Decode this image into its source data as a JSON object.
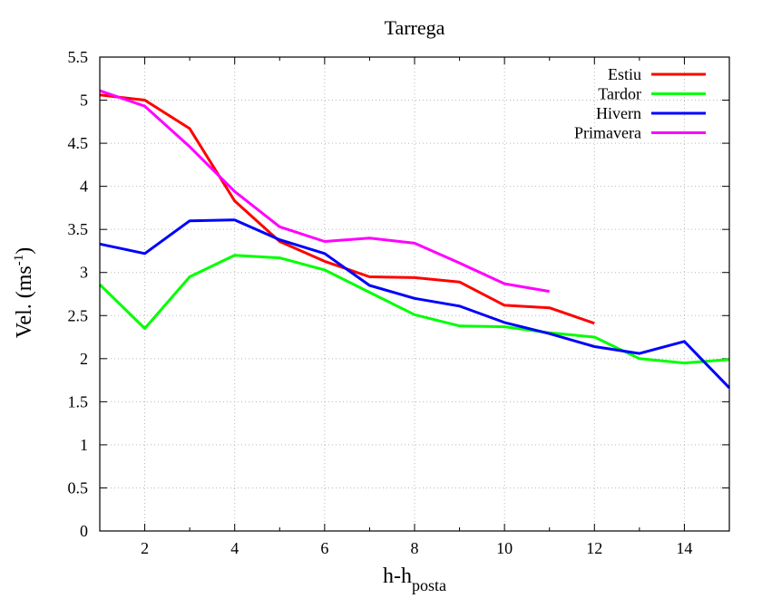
{
  "chart_data": {
    "type": "line",
    "title": "Tarrega",
    "xlabel": {
      "main": "h-h",
      "sub": "posta"
    },
    "ylabel": {
      "main": "Vel. (ms",
      "sup": "-1",
      "close": ")"
    },
    "xlim": [
      1,
      15
    ],
    "ylim": [
      0,
      5.5
    ],
    "xticks": [
      2,
      4,
      6,
      8,
      10,
      12,
      14
    ],
    "xtick_labels": [
      "2",
      "4",
      "6",
      "8",
      "10",
      "12",
      "14"
    ],
    "yticks": [
      0,
      0.5,
      1,
      1.5,
      2,
      2.5,
      3,
      3.5,
      4,
      4.5,
      5,
      5.5
    ],
    "ytick_labels": [
      "0",
      "0.5",
      "1",
      "1.5",
      "2",
      "2.5",
      "3",
      "3.5",
      "4",
      "4.5",
      "5",
      "5.5"
    ],
    "grid": true,
    "legend_position": "top-right",
    "series": [
      {
        "name": "Estiu",
        "color": "#ff0000",
        "x": [
          1,
          2,
          3,
          4,
          5,
          6,
          7,
          8,
          9,
          10,
          11,
          12
        ],
        "y": [
          5.06,
          5.0,
          4.67,
          3.83,
          3.36,
          3.13,
          2.95,
          2.94,
          2.89,
          2.62,
          2.59,
          2.41
        ]
      },
      {
        "name": "Tardor",
        "color": "#00ff00",
        "x": [
          1,
          2,
          3,
          4,
          5,
          6,
          7,
          8,
          9,
          10,
          11,
          12,
          13,
          14,
          15
        ],
        "y": [
          2.86,
          2.35,
          2.95,
          3.2,
          3.17,
          3.03,
          2.77,
          2.51,
          2.38,
          2.37,
          2.3,
          2.25,
          2.0,
          1.95,
          1.99
        ]
      },
      {
        "name": "Hivern",
        "color": "#0000ff",
        "x": [
          1,
          2,
          3,
          4,
          5,
          6,
          7,
          8,
          9,
          10,
          11,
          12,
          13,
          14,
          15
        ],
        "y": [
          3.33,
          3.22,
          3.6,
          3.61,
          3.38,
          3.22,
          2.85,
          2.7,
          2.61,
          2.42,
          2.29,
          2.14,
          2.06,
          2.2,
          1.66
        ]
      },
      {
        "name": "Primavera",
        "color": "#ff00ff",
        "x": [
          1,
          2,
          3,
          4,
          5,
          6,
          7,
          8,
          9,
          10,
          11
        ],
        "y": [
          5.11,
          4.93,
          4.46,
          3.94,
          3.53,
          3.36,
          3.4,
          3.34,
          3.11,
          2.87,
          2.78
        ]
      }
    ]
  }
}
